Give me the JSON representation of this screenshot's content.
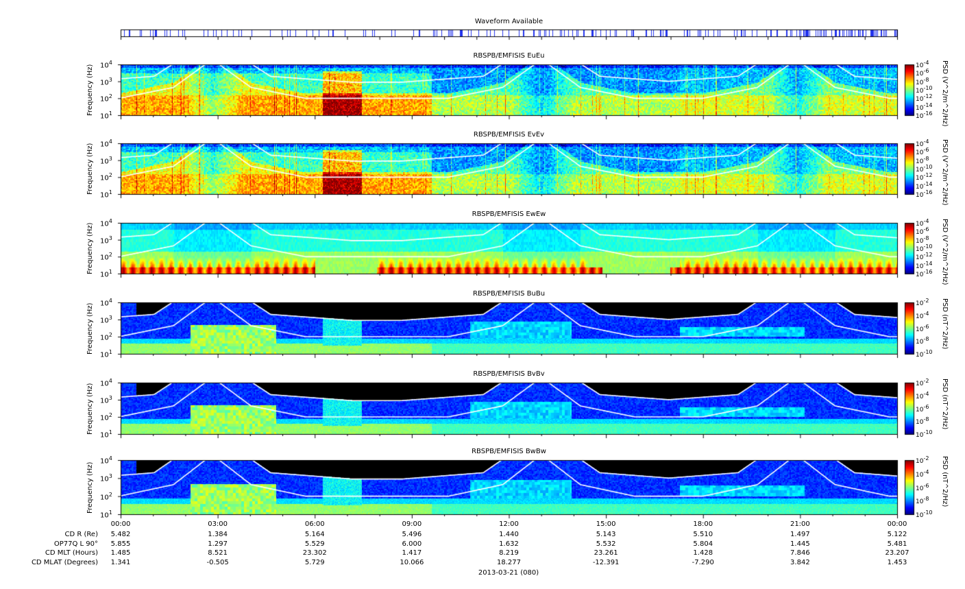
{
  "waveform_title": "Waveform Available",
  "chart_data": [
    {
      "type": "heatmap",
      "title": "RBSPB/EMFISIS  EuEu",
      "ylabel": "Frequency (Hz)",
      "ylim": [
        10,
        10000
      ],
      "y_log": true,
      "colorbar_label": "PSD (V^2/m^2/Hz)",
      "colorbar_ticks": [
        "10-4",
        "10-6",
        "10-8",
        "10-10",
        "10-12",
        "10-14",
        "10-16"
      ],
      "style": "E"
    },
    {
      "type": "heatmap",
      "title": "RBSPB/EMFISIS  EvEv",
      "ylabel": "Frequency (Hz)",
      "ylim": [
        10,
        10000
      ],
      "y_log": true,
      "colorbar_label": "PSD (V^2/m^2/Hz)",
      "colorbar_ticks": [
        "10-4",
        "10-6",
        "10-8",
        "10-10",
        "10-12",
        "10-14",
        "10-16"
      ],
      "style": "E"
    },
    {
      "type": "heatmap",
      "title": "RBSPB/EMFISIS  EwEw",
      "ylabel": "Frequency (Hz)",
      "ylim": [
        10,
        10000
      ],
      "y_log": true,
      "colorbar_label": "PSD (V^2/m^2/Hz)",
      "colorbar_ticks": [
        "10-4",
        "10-6",
        "10-8",
        "10-10",
        "10-12",
        "10-14",
        "10-16"
      ],
      "style": "W"
    },
    {
      "type": "heatmap",
      "title": "RBSPB/EMFISIS  BuBu",
      "ylabel": "Frequency (Hz)",
      "ylim": [
        10,
        10000
      ],
      "y_log": true,
      "colorbar_label": "PSD (nT^2/Hz)",
      "colorbar_ticks": [
        "10-2",
        "10-4",
        "10-6",
        "10-8",
        "10-10"
      ],
      "style": "B"
    },
    {
      "type": "heatmap",
      "title": "RBSPB/EMFISIS  BvBv",
      "ylabel": "Frequency (Hz)",
      "ylim": [
        10,
        10000
      ],
      "y_log": true,
      "colorbar_label": "PSD (nT^2/Hz)",
      "colorbar_ticks": [
        "10-2",
        "10-4",
        "10-6",
        "10-8",
        "10-10"
      ],
      "style": "B"
    },
    {
      "type": "heatmap",
      "title": "RBSPB/EMFISIS  BwBw",
      "ylabel": "Frequency (Hz)",
      "ylim": [
        10,
        10000
      ],
      "y_log": true,
      "colorbar_label": "PSD (nT^2/Hz)",
      "colorbar_ticks": [
        "10-2",
        "10-4",
        "10-6",
        "10-8",
        "10-10"
      ],
      "style": "B"
    }
  ],
  "y_ticks": [
    "10^4",
    "10^3",
    "10^2",
    "10^1"
  ],
  "x_ticks": [
    "00:00",
    "03:00",
    "06:00",
    "09:00",
    "12:00",
    "15:00",
    "18:00",
    "21:00",
    "00:00"
  ],
  "ephemeris": [
    {
      "label": "CD R (Re)",
      "values": [
        "5.482",
        "1.384",
        "5.164",
        "5.496",
        "1.440",
        "5.143",
        "5.510",
        "1.497",
        "5.122"
      ]
    },
    {
      "label": "OP77Q L 90°",
      "values": [
        "5.855",
        "1.297",
        "5.529",
        "6.000",
        "1.632",
        "5.532",
        "5.804",
        "1.445",
        "5.481"
      ]
    },
    {
      "label": "CD MLT (Hours)",
      "values": [
        "1.485",
        "8.521",
        "23.302",
        "1.417",
        "8.219",
        "23.261",
        "1.428",
        "7.846",
        "23.207"
      ]
    },
    {
      "label": "CD MLAT (Degrees)",
      "values": [
        "1.341",
        "-0.505",
        "5.729",
        "10.066",
        "18.277",
        "-12.391",
        "-7.290",
        "3.842",
        "1.453"
      ]
    }
  ],
  "date_label": "2013-03-21 (080)"
}
